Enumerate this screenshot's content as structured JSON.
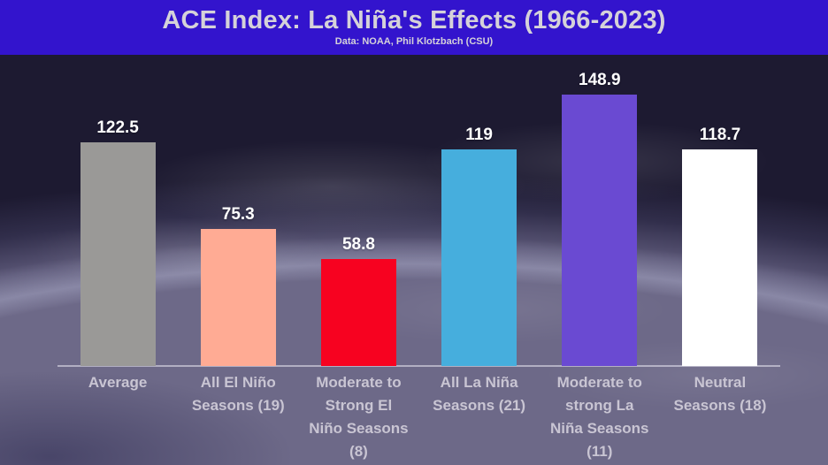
{
  "header": {
    "title": "ACE Index: La Niña's Effects (1966-2023)",
    "subtitle": "Data: NOAA, Phil Klotzbach (CSU)"
  },
  "background": {
    "description": "earth-hurricane-satellite-photo",
    "space_color": "#1b1831",
    "haze_color": "#6b6787"
  },
  "colors": {
    "header_background": "#3314cd",
    "header_text": "#d5d2d9",
    "value_label": "#ffffff",
    "category_label": "#c9c5d3",
    "axis_line": "#ebe9f4"
  },
  "chart_data": {
    "type": "bar",
    "title": "ACE Index: La Niña's Effects (1966-2023)",
    "subtitle": "Data: NOAA, Phil Klotzbach (CSU)",
    "categories": [
      "Average",
      "All El Niño Seasons (19)",
      "Moderate to Strong El Niño Seasons (8)",
      "All La Niña Seasons (21)",
      "Moderate to strong La Niña Seasons (11)",
      "Neutral Seasons (18)"
    ],
    "category_lines": [
      [
        "Average"
      ],
      [
        "All El Niño",
        "Seasons (19)"
      ],
      [
        "Moderate to",
        "Strong El",
        "Niño Seasons",
        "(8)"
      ],
      [
        "All La Niña",
        "Seasons (21)"
      ],
      [
        "Moderate to",
        "strong La",
        "Niña Seasons",
        "(11)"
      ],
      [
        "Neutral",
        "Seasons (18)"
      ]
    ],
    "values": [
      122.5,
      75.3,
      58.8,
      119,
      148.9,
      118.7
    ],
    "value_labels": [
      "122.5",
      "75.3",
      "58.8",
      "119",
      "148.9",
      "118.7"
    ],
    "bar_colors": [
      "#9a9997",
      "#ffab94",
      "#f70220",
      "#46aedd",
      "#6a4ad2",
      "#ffffff"
    ],
    "xlabel": "",
    "ylabel": "",
    "ylim": [
      0,
      160
    ],
    "grid": false,
    "legend": false,
    "value_labels_shown": true
  }
}
